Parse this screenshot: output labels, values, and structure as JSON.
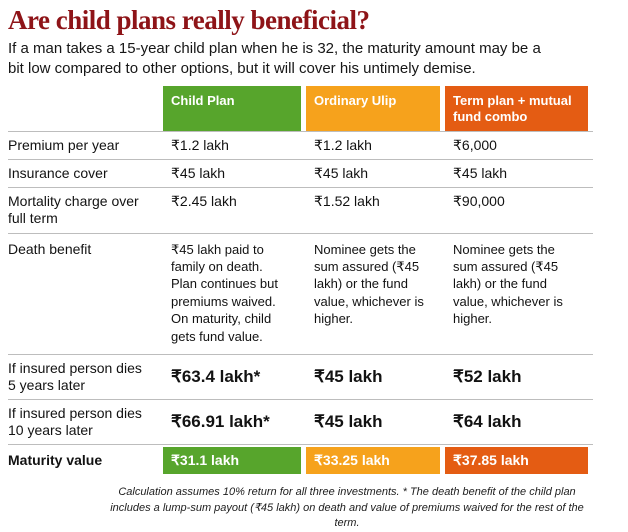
{
  "title": "Are child plans really beneficial?",
  "subtitle": "If a man takes a 15-year child plan when he is 32, the maturity amount may be a bit low compared to other options, but it will cover his untimely demise.",
  "footnote": "Calculation assumes 10% return for all three investments. * The death benefit of the child plan includes a lump-sum payout (₹45 lakh) on death and value of premiums waived for the rest of the term.",
  "colors": {
    "title_red": "#8e1418",
    "child_plan_green": "#57a52c",
    "ordinary_ulip_orange": "#f6a21c",
    "term_plan_deep_orange": "#e45c13",
    "row_divider_gray": "#bdbdbd"
  },
  "chart_data": {
    "type": "table",
    "title": "Are child plans really beneficial?",
    "columns": [
      {
        "label": "Child Plan",
        "header_color": "#57a52c"
      },
      {
        "label": "Ordinary Ulip",
        "header_color": "#f6a21c"
      },
      {
        "label": "Term plan + mutual fund combo",
        "header_color": "#e45c13"
      }
    ],
    "rows": [
      {
        "label": "Premium per year",
        "cells": [
          "₹1.2 lakh",
          "₹1.2 lakh",
          "₹6,000"
        ]
      },
      {
        "label": "Insurance cover",
        "cells": [
          "₹45 lakh",
          "₹45 lakh",
          "₹45 lakh"
        ]
      },
      {
        "label": "Mortality charge over full term",
        "cells": [
          "₹2.45 lakh",
          "₹1.52 lakh",
          "₹90,000"
        ]
      },
      {
        "label": "Death benefit",
        "cells": [
          "₹45 lakh paid to family on death. Plan continues but premiums waived. On maturity, child gets fund value.",
          "Nominee gets the sum assured (₹45 lakh) or the fund value, whichever is higher.",
          "Nominee gets the sum assured (₹45 lakh) or the fund value, whichever is higher."
        ]
      },
      {
        "label": "If insured person dies 5 years later",
        "cells": [
          "₹63.4 lakh*",
          "₹45 lakh",
          "₹52 lakh"
        ]
      },
      {
        "label": "If insured person dies 10 years later",
        "cells": [
          "₹66.91 lakh*",
          "₹45 lakh",
          "₹64 lakh"
        ]
      },
      {
        "label": "Maturity value",
        "cells": [
          "₹31.1 lakh",
          "₹33.25 lakh",
          "₹37.85 lakh"
        ]
      }
    ]
  }
}
